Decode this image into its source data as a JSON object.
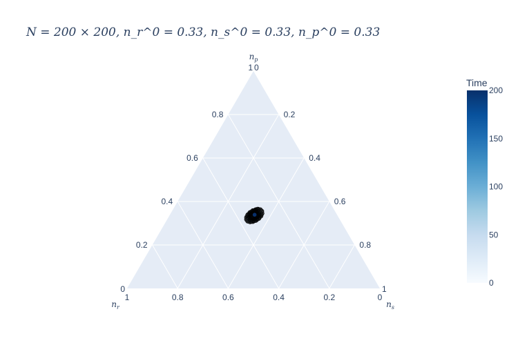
{
  "chart_data": {
    "type": "ternary-scatter",
    "title": "N = 200 × 200, n_r^0 = 0.33, n_s^0 = 0.33, n_p^0 = 0.33",
    "axes": {
      "a": {
        "label": "n_p",
        "ticks": [
          "0.2",
          "0.4",
          "0.6",
          "0.8",
          "1"
        ]
      },
      "b": {
        "label": "n_r",
        "ticks": [
          "0.2",
          "0.4",
          "0.6",
          "0.8",
          "1"
        ]
      },
      "c": {
        "label": "n_s",
        "ticks": [
          "0.2",
          "0.4",
          "0.6",
          "0.8",
          "1"
        ]
      }
    },
    "corner_zero_label": "0",
    "colorbar": {
      "title": "Time",
      "range": [
        0,
        200
      ],
      "ticks": [
        "0",
        "50",
        "100",
        "150",
        "200"
      ],
      "colorscale": [
        "#f7fbff",
        "#deebf7",
        "#c6dbef",
        "#9ecae1",
        "#6baed6",
        "#4292c6",
        "#2171b5",
        "#08519c",
        "#08306b"
      ]
    },
    "series": {
      "center": {
        "n_r": 0.33,
        "n_s": 0.335,
        "n_p": 0.335
      },
      "time_range": [
        0,
        200
      ],
      "radius_range": [
        0.004,
        0.029
      ],
      "turns": 14
    },
    "grid": true,
    "background": "#e5ecf6"
  }
}
